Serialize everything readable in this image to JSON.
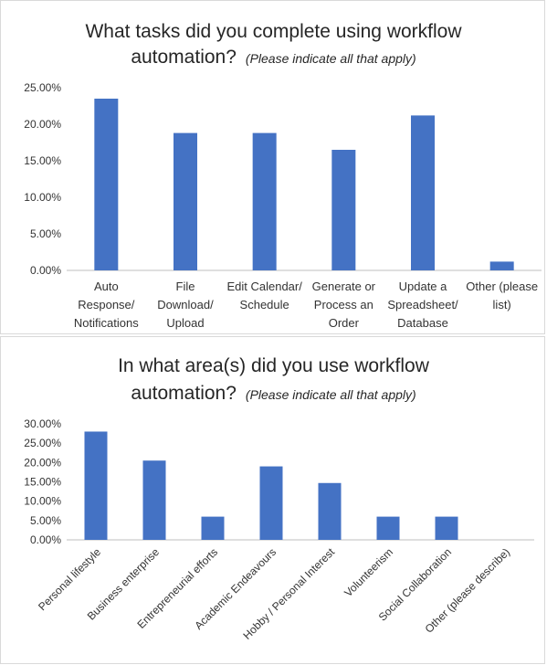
{
  "chart_data": [
    {
      "type": "bar",
      "title": "What tasks did you complete using workflow",
      "title_line2": "automation?",
      "subtitle": "(Please indicate all that apply)",
      "categories": [
        "Auto Response/ Notifications",
        "File Download/ Upload",
        "Edit Calendar/ Schedule",
        "Generate or Process an Order",
        "Update a Spreadsheet/ Database",
        "Other (please list)"
      ],
      "category_lines": [
        [
          "Auto",
          "Response/",
          "Notifications"
        ],
        [
          "File",
          "Download/",
          "Upload"
        ],
        [
          "Edit Calendar/",
          "Schedule"
        ],
        [
          "Generate or",
          "Process an",
          "Order"
        ],
        [
          "Update a",
          "Spreadsheet/",
          "Database"
        ],
        [
          "Other (please",
          "list)"
        ]
      ],
      "values": [
        23.5,
        18.8,
        18.8,
        16.5,
        21.2,
        1.2
      ],
      "ylim": [
        0,
        25
      ],
      "yticks": [
        "0.00%",
        "5.00%",
        "10.00%",
        "15.00%",
        "20.00%",
        "25.00%"
      ],
      "grid": false,
      "bar_color": "#4472c4"
    },
    {
      "type": "bar",
      "title": "In what area(s) did you use workflow",
      "title_line2": "automation?",
      "subtitle": "(Please indicate all that apply)",
      "categories": [
        "Personal lifestyle",
        "Business enterprise",
        "Entrepreneurial efforts",
        "Academic Endeavours",
        "Hobby / Personal Interest",
        "Volunteerism",
        "Social Collaboration",
        "Other (please describe)"
      ],
      "values": [
        28.0,
        20.5,
        6.0,
        19.0,
        14.7,
        6.0,
        6.0,
        0
      ],
      "ylim": [
        0,
        30
      ],
      "yticks": [
        "0.00%",
        "5.00%",
        "10.00%",
        "15.00%",
        "20.00%",
        "25.00%",
        "30.00%"
      ],
      "grid": false,
      "bar_color": "#4472c4"
    }
  ]
}
